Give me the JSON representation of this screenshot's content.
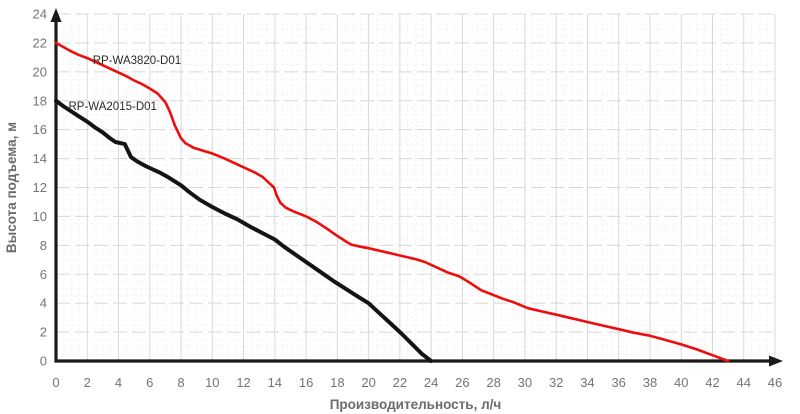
{
  "chart_data": {
    "type": "line",
    "title": "",
    "xlabel": "Производительность, л/ч",
    "ylabel": "Высота подъема, м",
    "xlim": [
      0,
      46
    ],
    "ylim": [
      0,
      24
    ],
    "x_tick_step": 2,
    "y_tick_step": 2,
    "minor_grid_step": 0.5,
    "grid": "major+minor",
    "legend_position": "inline-labels",
    "colors": {
      "background": "#ffffff",
      "axis": "#1a1a1a",
      "tick_labels": "#757575",
      "axis_titles": "#6b6b6b",
      "grid_major": "#d8d8d8",
      "grid_minor": "#f2f2f2",
      "series_label_text": "#2b2b2b"
    },
    "series": [
      {
        "name": "RP-WA3820-D01",
        "color": "#ee0d0d",
        "line_width": 2.6,
        "label_pos": {
          "x": 2.35,
          "y": 20.55
        },
        "points": [
          [
            0,
            22
          ],
          [
            0.5,
            21.7
          ],
          [
            1,
            21.4
          ],
          [
            1.5,
            21.15
          ],
          [
            2,
            20.95
          ],
          [
            2.5,
            20.7
          ],
          [
            3,
            20.45
          ],
          [
            3.5,
            20.2
          ],
          [
            4,
            19.95
          ],
          [
            4.5,
            19.7
          ],
          [
            5,
            19.4
          ],
          [
            5.5,
            19.15
          ],
          [
            6,
            18.85
          ],
          [
            6.5,
            18.5
          ],
          [
            7,
            17.9
          ],
          [
            7.3,
            17.2
          ],
          [
            7.6,
            16.3
          ],
          [
            8,
            15.4
          ],
          [
            8.3,
            15.05
          ],
          [
            8.8,
            14.75
          ],
          [
            9.4,
            14.55
          ],
          [
            10,
            14.35
          ],
          [
            10.7,
            14.05
          ],
          [
            11.3,
            13.75
          ],
          [
            12,
            13.4
          ],
          [
            12.7,
            13.05
          ],
          [
            13.2,
            12.75
          ],
          [
            13.7,
            12.25
          ],
          [
            13.95,
            12
          ],
          [
            14.1,
            11.5
          ],
          [
            14.35,
            10.95
          ],
          [
            14.7,
            10.6
          ],
          [
            15.2,
            10.35
          ],
          [
            16,
            10
          ],
          [
            16.7,
            9.6
          ],
          [
            17.4,
            9.1
          ],
          [
            18,
            8.65
          ],
          [
            18.5,
            8.3
          ],
          [
            18.9,
            8.05
          ],
          [
            19.5,
            7.9
          ],
          [
            20,
            7.8
          ],
          [
            21,
            7.55
          ],
          [
            22,
            7.3
          ],
          [
            23,
            7.05
          ],
          [
            23.6,
            6.85
          ],
          [
            24.2,
            6.55
          ],
          [
            25,
            6.15
          ],
          [
            25.8,
            5.85
          ],
          [
            26.5,
            5.4
          ],
          [
            27.2,
            4.9
          ],
          [
            27.9,
            4.6
          ],
          [
            28.6,
            4.3
          ],
          [
            29.3,
            4.05
          ],
          [
            30.2,
            3.65
          ],
          [
            31,
            3.45
          ],
          [
            32,
            3.2
          ],
          [
            33,
            2.95
          ],
          [
            34,
            2.7
          ],
          [
            35,
            2.45
          ],
          [
            36,
            2.2
          ],
          [
            37,
            1.95
          ],
          [
            38,
            1.75
          ],
          [
            39,
            1.45
          ],
          [
            40,
            1.15
          ],
          [
            41,
            0.8
          ],
          [
            42,
            0.4
          ],
          [
            43,
            0
          ]
        ]
      },
      {
        "name": "RP-WA2015-D01",
        "color": "#141414",
        "line_width": 4,
        "label_pos": {
          "x": 0.8,
          "y": 17.35
        },
        "points": [
          [
            0,
            18
          ],
          [
            0.5,
            17.6
          ],
          [
            1,
            17.25
          ],
          [
            1.5,
            16.9
          ],
          [
            2,
            16.55
          ],
          [
            2.5,
            16.15
          ],
          [
            3,
            15.8
          ],
          [
            3.4,
            15.45
          ],
          [
            3.8,
            15.15
          ],
          [
            4.4,
            15
          ],
          [
            4.8,
            14.1
          ],
          [
            5.2,
            13.8
          ],
          [
            5.7,
            13.5
          ],
          [
            6,
            13.35
          ],
          [
            6.6,
            13.05
          ],
          [
            7.2,
            12.7
          ],
          [
            8,
            12.15
          ],
          [
            8.5,
            11.7
          ],
          [
            9.2,
            11.15
          ],
          [
            10,
            10.65
          ],
          [
            10.8,
            10.2
          ],
          [
            11.6,
            9.8
          ],
          [
            12.4,
            9.3
          ],
          [
            13.2,
            8.85
          ],
          [
            14,
            8.4
          ],
          [
            14.6,
            7.9
          ],
          [
            15.4,
            7.3
          ],
          [
            16.2,
            6.7
          ],
          [
            17,
            6.1
          ],
          [
            17.8,
            5.5
          ],
          [
            18.6,
            4.95
          ],
          [
            19.4,
            4.4
          ],
          [
            20,
            4
          ],
          [
            20.7,
            3.3
          ],
          [
            21.4,
            2.6
          ],
          [
            22.1,
            1.9
          ],
          [
            22.8,
            1.15
          ],
          [
            23.4,
            0.5
          ],
          [
            24,
            0
          ]
        ]
      }
    ]
  }
}
